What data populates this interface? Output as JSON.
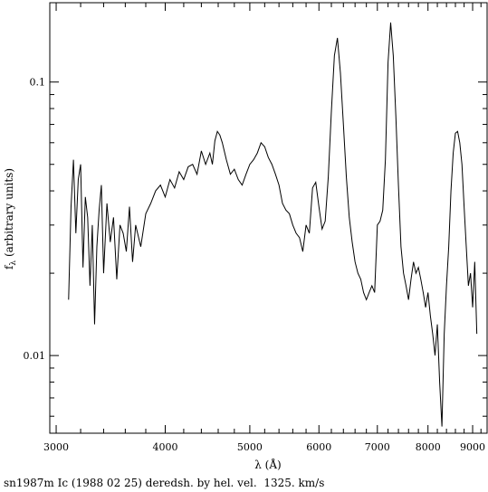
{
  "chart_data": {
    "type": "line",
    "title": "",
    "xlabel": "λ (Å)",
    "ylabel_main": "f",
    "ylabel_sub": "λ",
    "ylabel_rest": " (arbitrary units)",
    "xscale": "log",
    "yscale": "log",
    "xlim": [
      2950,
      9350
    ],
    "ylim": [
      0.0052,
      0.195
    ],
    "xticks_major": [
      {
        "value": 3000,
        "label": "3000"
      },
      {
        "value": 4000,
        "label": "4000"
      },
      {
        "value": 5000,
        "label": "5000"
      },
      {
        "value": 6000,
        "label": "6000"
      },
      {
        "value": 7000,
        "label": "7000"
      },
      {
        "value": 8000,
        "label": "8000"
      },
      {
        "value": 9000,
        "label": "9000"
      }
    ],
    "yticks_major": [
      {
        "value": 0.01,
        "label": "0.01"
      },
      {
        "value": 0.1,
        "label": "0.1"
      }
    ],
    "series": [
      {
        "x": [
          3100,
          3120,
          3140,
          3160,
          3180,
          3200,
          3220,
          3240,
          3260,
          3280,
          3300,
          3320,
          3340,
          3360,
          3380,
          3400,
          3430,
          3460,
          3490,
          3520,
          3550,
          3580,
          3610,
          3640,
          3670,
          3700,
          3750,
          3800,
          3850,
          3900,
          3950,
          4000,
          4050,
          4100,
          4150,
          4200,
          4250,
          4300,
          4350,
          4400,
          4450,
          4500,
          4530,
          4560,
          4590,
          4620,
          4650,
          4700,
          4750,
          4800,
          4850,
          4900,
          4950,
          5000,
          5050,
          5100,
          5150,
          5200,
          5250,
          5300,
          5350,
          5400,
          5450,
          5500,
          5550,
          5600,
          5650,
          5700,
          5750,
          5800,
          5850,
          5900,
          5950,
          6000,
          6050,
          6100,
          6150,
          6200,
          6250,
          6300,
          6350,
          6400,
          6450,
          6500,
          6550,
          6600,
          6650,
          6700,
          6750,
          6800,
          6850,
          6900,
          6950,
          7000,
          7050,
          7100,
          7150,
          7200,
          7250,
          7300,
          7350,
          7400,
          7450,
          7500,
          7550,
          7600,
          7650,
          7700,
          7750,
          7800,
          7850,
          7900,
          7950,
          8000,
          8050,
          8100,
          8150,
          8200,
          8250,
          8300,
          8350,
          8400,
          8450,
          8500,
          8550,
          8600,
          8650,
          8700,
          8750,
          8800,
          8850,
          8900,
          8950,
          9000,
          9050,
          9100
        ],
        "y": [
          0.016,
          0.035,
          0.052,
          0.028,
          0.044,
          0.05,
          0.021,
          0.038,
          0.032,
          0.018,
          0.03,
          0.013,
          0.025,
          0.034,
          0.042,
          0.02,
          0.036,
          0.026,
          0.032,
          0.019,
          0.03,
          0.028,
          0.024,
          0.035,
          0.022,
          0.03,
          0.025,
          0.033,
          0.036,
          0.04,
          0.042,
          0.038,
          0.044,
          0.041,
          0.047,
          0.044,
          0.049,
          0.05,
          0.046,
          0.056,
          0.05,
          0.055,
          0.05,
          0.061,
          0.066,
          0.064,
          0.06,
          0.052,
          0.046,
          0.048,
          0.044,
          0.042,
          0.046,
          0.05,
          0.052,
          0.055,
          0.06,
          0.058,
          0.053,
          0.05,
          0.046,
          0.042,
          0.036,
          0.034,
          0.033,
          0.03,
          0.028,
          0.027,
          0.024,
          0.03,
          0.028,
          0.041,
          0.043,
          0.035,
          0.029,
          0.031,
          0.045,
          0.078,
          0.125,
          0.145,
          0.108,
          0.07,
          0.045,
          0.032,
          0.026,
          0.022,
          0.02,
          0.019,
          0.017,
          0.016,
          0.017,
          0.018,
          0.017,
          0.03,
          0.031,
          0.034,
          0.052,
          0.118,
          0.165,
          0.125,
          0.075,
          0.042,
          0.025,
          0.02,
          0.018,
          0.016,
          0.019,
          0.022,
          0.02,
          0.021,
          0.019,
          0.017,
          0.015,
          0.017,
          0.014,
          0.012,
          0.01,
          0.013,
          0.008,
          0.0055,
          0.012,
          0.018,
          0.025,
          0.04,
          0.055,
          0.065,
          0.066,
          0.06,
          0.05,
          0.035,
          0.025,
          0.018,
          0.02,
          0.015,
          0.022,
          0.012
        ]
      }
    ]
  },
  "caption": "sn1987m Ic (1988 02 25) deredsh. by hel. vel.  1325. km/s"
}
